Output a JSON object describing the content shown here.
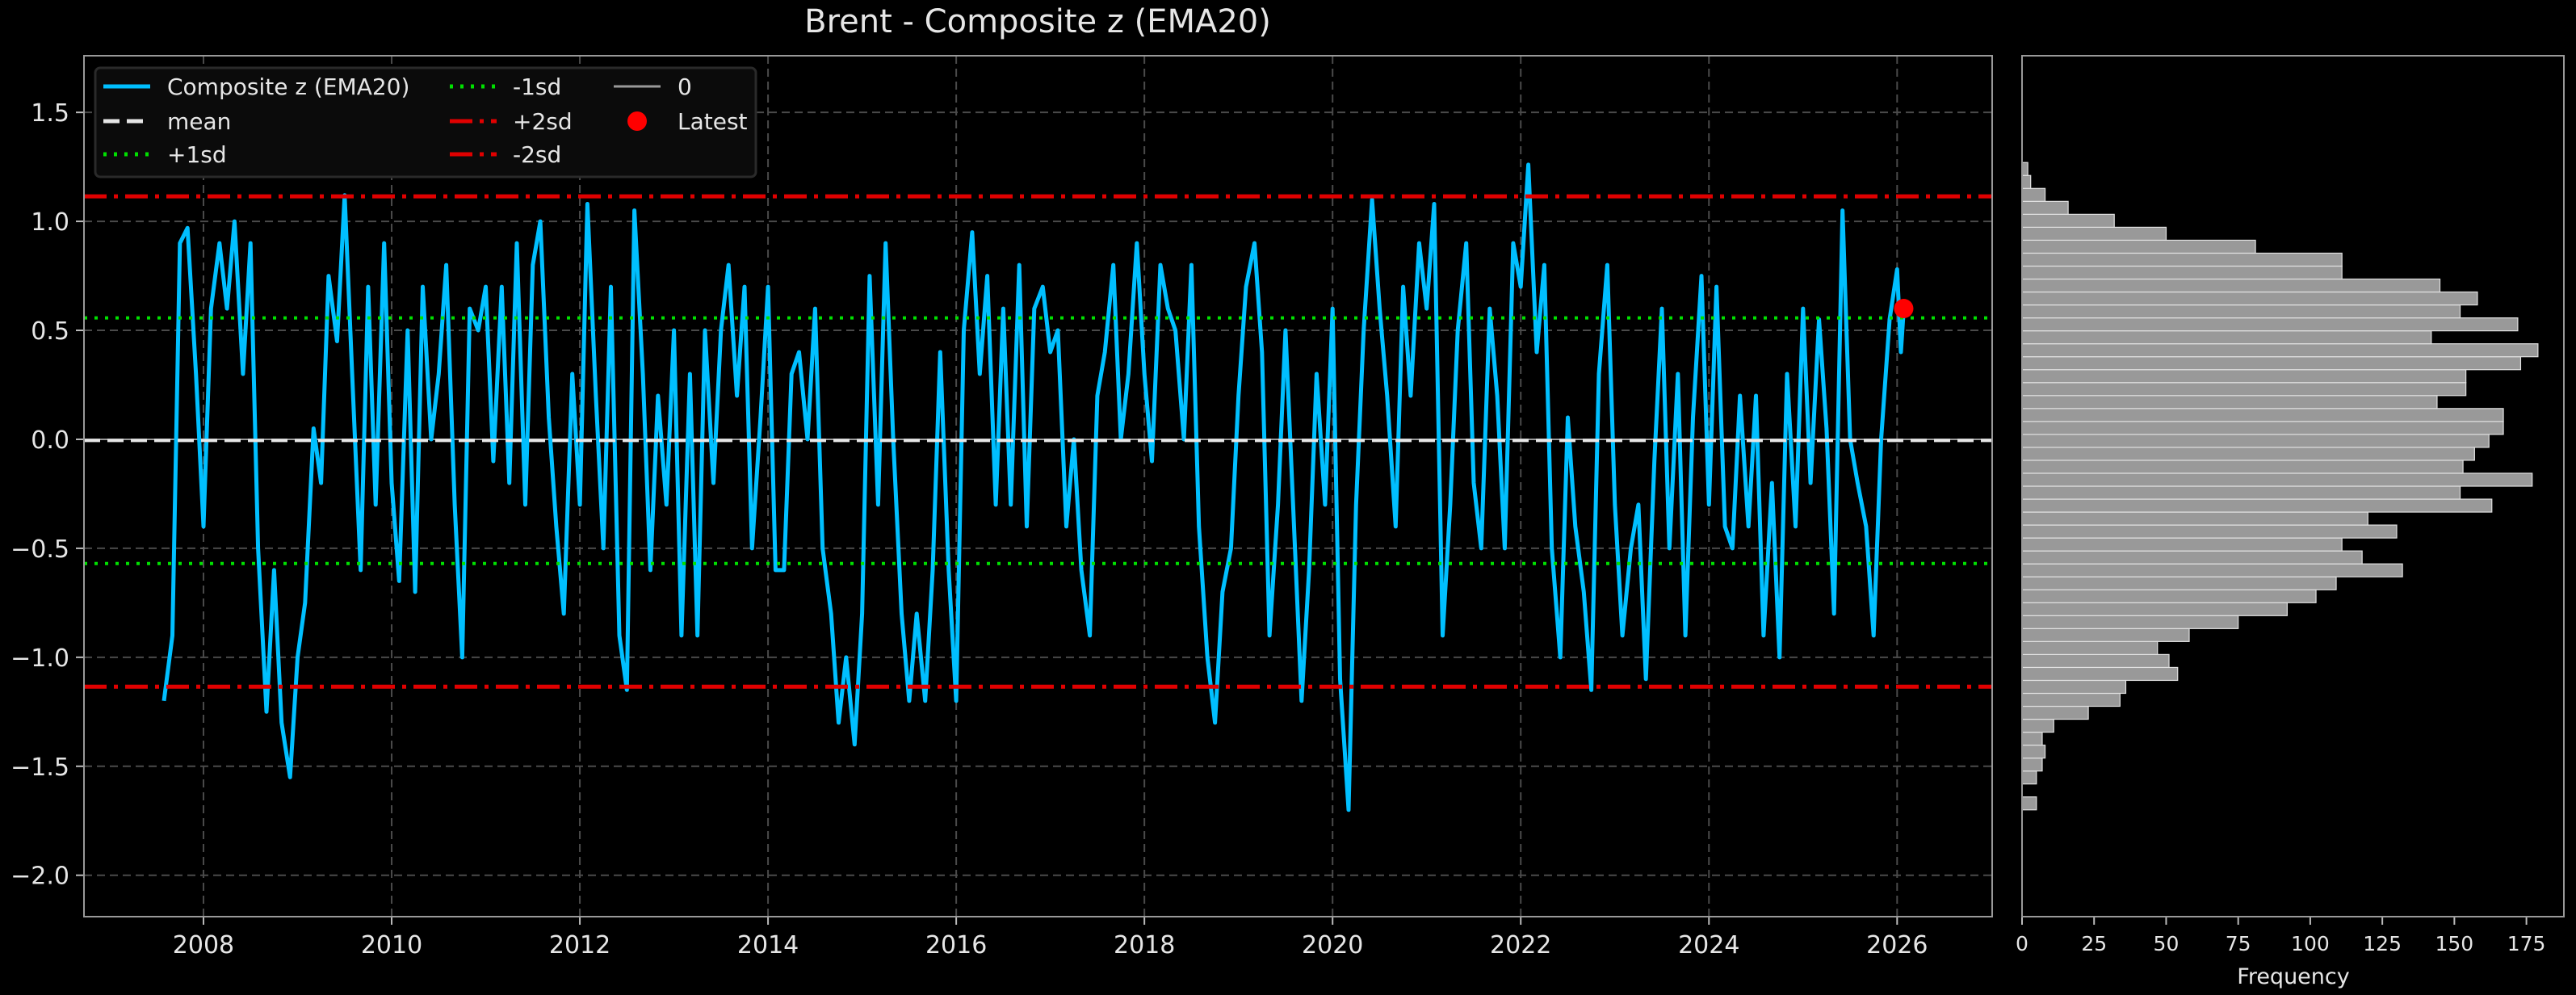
{
  "chart_data": [
    {
      "type": "line",
      "title": "Brent - Composite z (EMA20)",
      "xlabel": "",
      "ylabel": "",
      "xlim": [
        2006.73,
        2027.01
      ],
      "ylim": [
        -2.19,
        1.76
      ],
      "grid": true,
      "legend_placement": "top-left",
      "x_ticks": [
        "2008",
        "2010",
        "2012",
        "2014",
        "2016",
        "2018",
        "2020",
        "2022",
        "2024",
        "2026"
      ],
      "y_ticks": [
        "1.5",
        "1.0",
        "0.5",
        "0.0",
        "−0.5",
        "−1.0",
        "−1.5",
        "−2.0"
      ],
      "y_tick_values": [
        1.5,
        1.0,
        0.5,
        0.0,
        -0.5,
        -1.0,
        -1.5,
        -2.0
      ],
      "x_tick_values": [
        2008,
        2010,
        2012,
        2014,
        2016,
        2018,
        2020,
        2022,
        2024,
        2026
      ],
      "legend": [
        {
          "label": "Composite z (EMA20)",
          "style": "solid",
          "color": "#00bfff"
        },
        {
          "label": "mean",
          "style": "dashed",
          "color": "#e6e6e6"
        },
        {
          "label": "+1sd",
          "style": "dotted",
          "color": "#00e000"
        },
        {
          "label": "-1sd",
          "style": "dotted",
          "color": "#00e000"
        },
        {
          "label": "+2sd",
          "style": "dashdot",
          "color": "#e00000"
        },
        {
          "label": "-2sd",
          "style": "dashdot",
          "color": "#e00000"
        },
        {
          "label": "0",
          "style": "solid",
          "color": "#999999"
        },
        {
          "label": "Latest",
          "style": "marker",
          "color": "#ff0000"
        }
      ],
      "reference_lines": {
        "mean": -0.005,
        "plus_1sd": 0.557,
        "minus_1sd": -0.57,
        "plus_2sd": 1.115,
        "minus_2sd": -1.135,
        "zero": 0
      },
      "latest": {
        "x": 2026.07,
        "y": 0.6
      },
      "series": [
        {
          "name": "Composite z (EMA20)",
          "color": "#00bfff",
          "points": [
            [
              2007.58,
              -1.2
            ],
            [
              2007.67,
              -0.9
            ],
            [
              2007.75,
              0.9
            ],
            [
              2007.83,
              0.97
            ],
            [
              2007.92,
              0.3
            ],
            [
              2008.0,
              -0.4
            ],
            [
              2008.08,
              0.6
            ],
            [
              2008.17,
              0.9
            ],
            [
              2008.25,
              0.6
            ],
            [
              2008.33,
              1.0
            ],
            [
              2008.42,
              0.3
            ],
            [
              2008.5,
              0.9
            ],
            [
              2008.58,
              -0.5
            ],
            [
              2008.67,
              -1.25
            ],
            [
              2008.75,
              -0.6
            ],
            [
              2008.83,
              -1.3
            ],
            [
              2008.92,
              -1.55
            ],
            [
              2009.0,
              -1.0
            ],
            [
              2009.08,
              -0.75
            ],
            [
              2009.17,
              0.05
            ],
            [
              2009.25,
              -0.2
            ],
            [
              2009.33,
              0.75
            ],
            [
              2009.42,
              0.45
            ],
            [
              2009.5,
              1.12
            ],
            [
              2009.58,
              0.3
            ],
            [
              2009.67,
              -0.6
            ],
            [
              2009.75,
              0.7
            ],
            [
              2009.83,
              -0.3
            ],
            [
              2009.92,
              0.9
            ],
            [
              2010.0,
              -0.2
            ],
            [
              2010.08,
              -0.65
            ],
            [
              2010.17,
              0.5
            ],
            [
              2010.25,
              -0.7
            ],
            [
              2010.33,
              0.7
            ],
            [
              2010.42,
              0.0
            ],
            [
              2010.5,
              0.3
            ],
            [
              2010.58,
              0.8
            ],
            [
              2010.67,
              -0.3
            ],
            [
              2010.75,
              -1.0
            ],
            [
              2010.83,
              0.6
            ],
            [
              2010.92,
              0.5
            ],
            [
              2011.0,
              0.7
            ],
            [
              2011.08,
              -0.1
            ],
            [
              2011.17,
              0.7
            ],
            [
              2011.25,
              -0.2
            ],
            [
              2011.33,
              0.9
            ],
            [
              2011.42,
              -0.3
            ],
            [
              2011.5,
              0.8
            ],
            [
              2011.58,
              1.0
            ],
            [
              2011.67,
              0.1
            ],
            [
              2011.75,
              -0.4
            ],
            [
              2011.83,
              -0.8
            ],
            [
              2011.92,
              0.3
            ],
            [
              2012.0,
              -0.3
            ],
            [
              2012.08,
              1.08
            ],
            [
              2012.17,
              0.2
            ],
            [
              2012.25,
              -0.5
            ],
            [
              2012.33,
              0.7
            ],
            [
              2012.42,
              -0.9
            ],
            [
              2012.5,
              -1.15
            ],
            [
              2012.58,
              1.05
            ],
            [
              2012.67,
              0.3
            ],
            [
              2012.75,
              -0.6
            ],
            [
              2012.83,
              0.2
            ],
            [
              2012.92,
              -0.3
            ],
            [
              2013.0,
              0.5
            ],
            [
              2013.08,
              -0.9
            ],
            [
              2013.17,
              0.3
            ],
            [
              2013.25,
              -0.9
            ],
            [
              2013.33,
              0.5
            ],
            [
              2013.42,
              -0.2
            ],
            [
              2013.5,
              0.5
            ],
            [
              2013.58,
              0.8
            ],
            [
              2013.67,
              0.2
            ],
            [
              2013.75,
              0.7
            ],
            [
              2013.83,
              -0.5
            ],
            [
              2013.92,
              0.1
            ],
            [
              2014.0,
              0.7
            ],
            [
              2014.08,
              -0.6
            ],
            [
              2014.17,
              -0.6
            ],
            [
              2014.25,
              0.3
            ],
            [
              2014.33,
              0.4
            ],
            [
              2014.42,
              0.0
            ],
            [
              2014.5,
              0.6
            ],
            [
              2014.58,
              -0.5
            ],
            [
              2014.67,
              -0.8
            ],
            [
              2014.75,
              -1.3
            ],
            [
              2014.83,
              -1.0
            ],
            [
              2014.92,
              -1.4
            ],
            [
              2015.0,
              -0.8
            ],
            [
              2015.08,
              0.75
            ],
            [
              2015.17,
              -0.3
            ],
            [
              2015.25,
              0.9
            ],
            [
              2015.33,
              0.0
            ],
            [
              2015.42,
              -0.8
            ],
            [
              2015.5,
              -1.2
            ],
            [
              2015.58,
              -0.8
            ],
            [
              2015.67,
              -1.2
            ],
            [
              2015.75,
              -0.6
            ],
            [
              2015.83,
              0.4
            ],
            [
              2015.92,
              -0.6
            ],
            [
              2016.0,
              -1.2
            ],
            [
              2016.08,
              0.5
            ],
            [
              2016.17,
              0.95
            ],
            [
              2016.25,
              0.3
            ],
            [
              2016.33,
              0.75
            ],
            [
              2016.42,
              -0.3
            ],
            [
              2016.5,
              0.6
            ],
            [
              2016.58,
              -0.3
            ],
            [
              2016.67,
              0.8
            ],
            [
              2016.75,
              -0.4
            ],
            [
              2016.83,
              0.6
            ],
            [
              2016.92,
              0.7
            ],
            [
              2017.0,
              0.4
            ],
            [
              2017.08,
              0.5
            ],
            [
              2017.17,
              -0.4
            ],
            [
              2017.25,
              0.0
            ],
            [
              2017.33,
              -0.6
            ],
            [
              2017.42,
              -0.9
            ],
            [
              2017.5,
              0.2
            ],
            [
              2017.58,
              0.4
            ],
            [
              2017.67,
              0.8
            ],
            [
              2017.75,
              0.0
            ],
            [
              2017.83,
              0.3
            ],
            [
              2017.92,
              0.9
            ],
            [
              2018.0,
              0.3
            ],
            [
              2018.08,
              -0.1
            ],
            [
              2018.17,
              0.8
            ],
            [
              2018.25,
              0.6
            ],
            [
              2018.33,
              0.5
            ],
            [
              2018.42,
              0.0
            ],
            [
              2018.5,
              0.8
            ],
            [
              2018.58,
              -0.4
            ],
            [
              2018.67,
              -1.0
            ],
            [
              2018.75,
              -1.3
            ],
            [
              2018.83,
              -0.7
            ],
            [
              2018.92,
              -0.5
            ],
            [
              2019.0,
              0.2
            ],
            [
              2019.08,
              0.7
            ],
            [
              2019.17,
              0.9
            ],
            [
              2019.25,
              0.4
            ],
            [
              2019.33,
              -0.9
            ],
            [
              2019.42,
              -0.3
            ],
            [
              2019.5,
              0.5
            ],
            [
              2019.58,
              -0.3
            ],
            [
              2019.67,
              -1.2
            ],
            [
              2019.75,
              -0.6
            ],
            [
              2019.83,
              0.3
            ],
            [
              2019.92,
              -0.3
            ],
            [
              2020.0,
              0.6
            ],
            [
              2020.08,
              -1.1
            ],
            [
              2020.17,
              -1.7
            ],
            [
              2020.25,
              -0.3
            ],
            [
              2020.33,
              0.5
            ],
            [
              2020.42,
              1.1
            ],
            [
              2020.5,
              0.6
            ],
            [
              2020.58,
              0.2
            ],
            [
              2020.67,
              -0.4
            ],
            [
              2020.75,
              0.7
            ],
            [
              2020.83,
              0.2
            ],
            [
              2020.92,
              0.9
            ],
            [
              2021.0,
              0.6
            ],
            [
              2021.08,
              1.08
            ],
            [
              2021.17,
              -0.9
            ],
            [
              2021.25,
              -0.3
            ],
            [
              2021.33,
              0.5
            ],
            [
              2021.42,
              0.9
            ],
            [
              2021.5,
              -0.2
            ],
            [
              2021.58,
              -0.5
            ],
            [
              2021.67,
              0.6
            ],
            [
              2021.75,
              0.2
            ],
            [
              2021.83,
              -0.5
            ],
            [
              2021.92,
              0.9
            ],
            [
              2022.0,
              0.7
            ],
            [
              2022.08,
              1.26
            ],
            [
              2022.17,
              0.4
            ],
            [
              2022.25,
              0.8
            ],
            [
              2022.33,
              -0.5
            ],
            [
              2022.42,
              -1.0
            ],
            [
              2022.5,
              0.1
            ],
            [
              2022.58,
              -0.4
            ],
            [
              2022.67,
              -0.7
            ],
            [
              2022.75,
              -1.15
            ],
            [
              2022.83,
              0.3
            ],
            [
              2022.92,
              0.8
            ],
            [
              2023.0,
              -0.3
            ],
            [
              2023.08,
              -0.9
            ],
            [
              2023.17,
              -0.5
            ],
            [
              2023.25,
              -0.3
            ],
            [
              2023.33,
              -1.1
            ],
            [
              2023.42,
              -0.1
            ],
            [
              2023.5,
              0.6
            ],
            [
              2023.58,
              -0.5
            ],
            [
              2023.67,
              0.3
            ],
            [
              2023.75,
              -0.9
            ],
            [
              2023.83,
              0.1
            ],
            [
              2023.92,
              0.75
            ],
            [
              2024.0,
              -0.3
            ],
            [
              2024.08,
              0.7
            ],
            [
              2024.17,
              -0.4
            ],
            [
              2024.25,
              -0.5
            ],
            [
              2024.33,
              0.2
            ],
            [
              2024.42,
              -0.4
            ],
            [
              2024.5,
              0.2
            ],
            [
              2024.58,
              -0.9
            ],
            [
              2024.67,
              -0.2
            ],
            [
              2024.75,
              -1.0
            ],
            [
              2024.83,
              0.3
            ],
            [
              2024.92,
              -0.4
            ],
            [
              2025.0,
              0.6
            ],
            [
              2025.08,
              -0.2
            ],
            [
              2025.17,
              0.55
            ],
            [
              2025.25,
              0.05
            ],
            [
              2025.33,
              -0.8
            ],
            [
              2025.42,
              1.05
            ],
            [
              2025.5,
              0.0
            ],
            [
              2025.58,
              -0.2
            ],
            [
              2025.67,
              -0.4
            ],
            [
              2025.75,
              -0.9
            ],
            [
              2025.83,
              0.0
            ],
            [
              2025.92,
              0.55
            ],
            [
              2026.0,
              0.78
            ],
            [
              2026.04,
              0.4
            ],
            [
              2026.07,
              0.6
            ]
          ]
        }
      ]
    },
    {
      "type": "bar",
      "orientation": "horizontal",
      "title": "",
      "xlabel": "Frequency",
      "ylabel": "",
      "xlim": [
        0,
        188
      ],
      "ylim": [
        -2.19,
        1.76
      ],
      "x_ticks": [
        "0",
        "25",
        "50",
        "75",
        "100",
        "125",
        "150",
        "175"
      ],
      "x_tick_values": [
        0,
        25,
        50,
        75,
        100,
        125,
        150,
        175
      ],
      "bin_range": [
        -1.7,
        1.27
      ],
      "bar_color": "#999999",
      "counts": [
        5,
        0,
        5,
        7,
        8,
        7,
        11,
        23,
        34,
        36,
        54,
        51,
        47,
        58,
        75,
        92,
        102,
        109,
        132,
        118,
        111,
        130,
        120,
        163,
        152,
        177,
        153,
        157,
        162,
        167,
        167,
        144,
        154,
        154,
        173,
        179,
        142,
        172,
        152,
        158,
        145,
        111,
        111,
        81,
        50,
        32,
        16,
        8,
        3,
        2
      ]
    }
  ]
}
